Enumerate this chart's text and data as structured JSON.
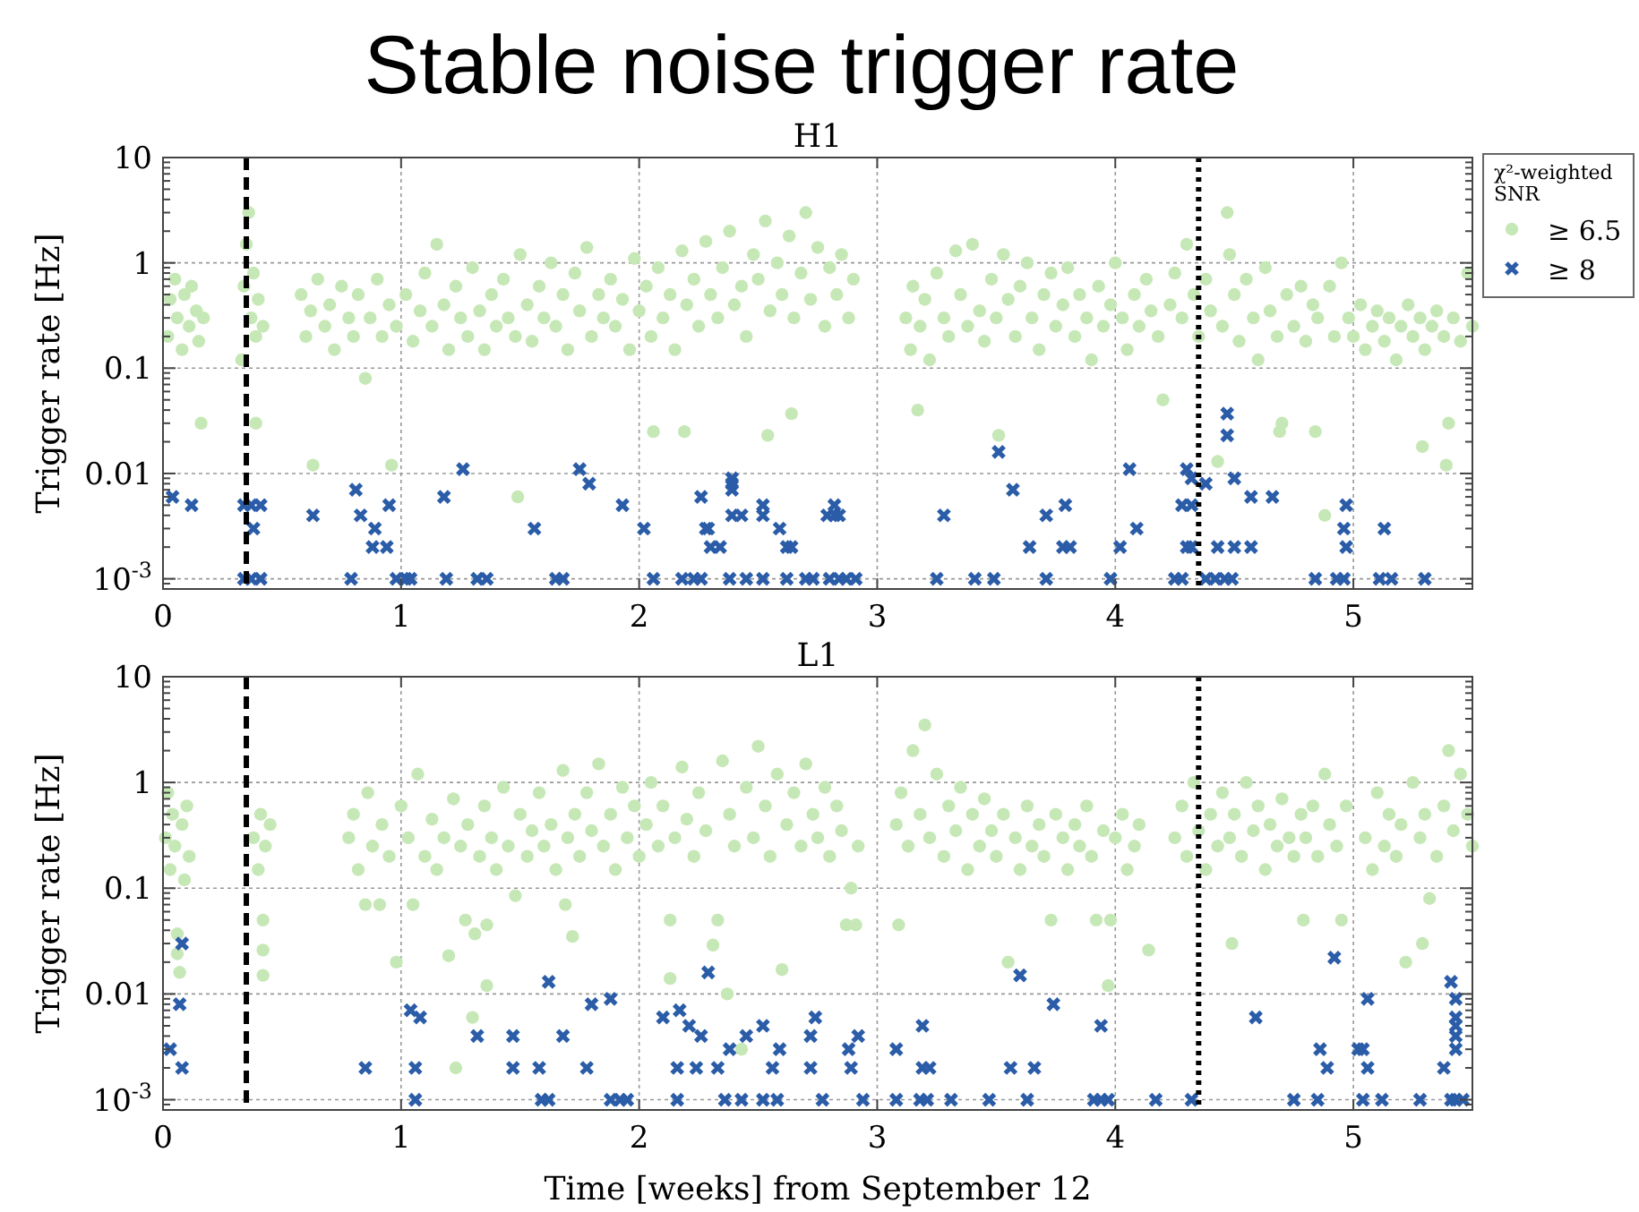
{
  "chart_data": [
    {
      "type": "scatter",
      "title": "Stable noise trigger rate",
      "subtitle": "H1",
      "ylabel": "Trigger rate [Hz]",
      "legend_title": "χ²-weighted SNR",
      "legend": "right",
      "grid": true,
      "log": "y",
      "xlim": [
        0,
        5.5
      ],
      "xticks": [
        0,
        1,
        2,
        3,
        4,
        5
      ],
      "ylim": [
        0.0008,
        10
      ],
      "yticks": [
        {
          "value": 0.001,
          "label": "10$^{-3}$"
        },
        0.01,
        0.1,
        1,
        10
      ],
      "ref_lines": [
        {
          "axis": "x",
          "value": 0.35,
          "color": "#000000",
          "line_style": "dashed"
        },
        {
          "axis": "x",
          "value": 4.35,
          "color": "#000000",
          "line_style": "dotted"
        }
      ],
      "series": [
        {
          "name": "≥ 6.5",
          "color": "#c6e8b6",
          "marker": "circle",
          "x": [
            0.02,
            0.03,
            0.05,
            0.06,
            0.08,
            0.09,
            0.11,
            0.12,
            0.14,
            0.15,
            0.16,
            0.17,
            0.33,
            0.34,
            0.35,
            0.36,
            0.37,
            0.38,
            0.39,
            0.39,
            0.4,
            0.42,
            0.58,
            0.6,
            0.62,
            0.63,
            0.65,
            0.68,
            0.7,
            0.72,
            0.75,
            0.78,
            0.8,
            0.82,
            0.85,
            0.87,
            0.9,
            0.92,
            0.95,
            0.96,
            0.98,
            1.02,
            1.05,
            1.08,
            1.1,
            1.13,
            1.15,
            1.18,
            1.2,
            1.23,
            1.25,
            1.28,
            1.3,
            1.33,
            1.35,
            1.38,
            1.4,
            1.43,
            1.45,
            1.48,
            1.49,
            1.5,
            1.53,
            1.55,
            1.58,
            1.6,
            1.63,
            1.65,
            1.68,
            1.7,
            1.73,
            1.75,
            1.78,
            1.8,
            1.83,
            1.85,
            1.88,
            1.9,
            1.93,
            1.96,
            1.98,
            2.0,
            2.03,
            2.05,
            2.06,
            2.08,
            2.1,
            2.13,
            2.15,
            2.18,
            2.19,
            2.2,
            2.23,
            2.25,
            2.28,
            2.3,
            2.33,
            2.35,
            2.38,
            2.4,
            2.43,
            2.45,
            2.48,
            2.5,
            2.53,
            2.54,
            2.55,
            2.58,
            2.6,
            2.63,
            2.64,
            2.65,
            2.68,
            2.7,
            2.72,
            2.75,
            2.78,
            2.8,
            2.83,
            2.85,
            2.88,
            2.9,
            3.12,
            3.14,
            3.15,
            3.17,
            3.18,
            3.2,
            3.22,
            3.25,
            3.28,
            3.3,
            3.33,
            3.35,
            3.38,
            3.4,
            3.43,
            3.45,
            3.48,
            3.5,
            3.51,
            3.53,
            3.55,
            3.58,
            3.6,
            3.63,
            3.65,
            3.68,
            3.7,
            3.73,
            3.75,
            3.78,
            3.8,
            3.83,
            3.85,
            3.88,
            3.9,
            3.93,
            3.95,
            3.98,
            4.0,
            4.03,
            4.05,
            4.08,
            4.1,
            4.13,
            4.15,
            4.18,
            4.2,
            4.23,
            4.25,
            4.28,
            4.3,
            4.33,
            4.35,
            4.38,
            4.4,
            4.43,
            4.45,
            4.47,
            4.48,
            4.5,
            4.52,
            4.55,
            4.58,
            4.6,
            4.63,
            4.65,
            4.68,
            4.69,
            4.7,
            4.72,
            4.75,
            4.78,
            4.8,
            4.83,
            4.84,
            4.85,
            4.88,
            4.9,
            4.92,
            4.95,
            4.98,
            5.0,
            5.03,
            5.05,
            5.08,
            5.1,
            5.13,
            5.15,
            5.18,
            5.2,
            5.23,
            5.25,
            5.28,
            5.29,
            5.3,
            5.33,
            5.35,
            5.38,
            5.39,
            5.4,
            5.42,
            5.45,
            5.48,
            5.5
          ],
          "values": [
            0.2,
            0.45,
            0.7,
            0.3,
            0.15,
            0.5,
            0.25,
            0.6,
            0.35,
            0.18,
            0.03,
            0.3,
            0.12,
            0.6,
            1.5,
            3,
            0.3,
            0.8,
            0.2,
            0.03,
            0.45,
            0.25,
            0.5,
            0.2,
            0.35,
            0.012,
            0.7,
            0.25,
            0.4,
            0.15,
            0.6,
            0.3,
            0.2,
            0.5,
            0.08,
            0.3,
            0.7,
            0.2,
            0.4,
            0.012,
            0.25,
            0.5,
            0.18,
            0.35,
            0.8,
            0.25,
            1.5,
            0.4,
            0.15,
            0.6,
            0.3,
            0.2,
            0.9,
            0.35,
            0.15,
            0.5,
            0.25,
            0.7,
            0.3,
            0.2,
            0.006,
            1.2,
            0.4,
            0.18,
            0.6,
            0.3,
            1.0,
            0.25,
            0.5,
            0.15,
            0.8,
            0.35,
            1.4,
            0.2,
            0.5,
            0.3,
            0.7,
            0.25,
            0.45,
            0.15,
            1.1,
            0.35,
            0.6,
            0.2,
            0.025,
            0.9,
            0.3,
            0.5,
            0.15,
            1.3,
            0.025,
            0.4,
            0.7,
            0.25,
            1.6,
            0.5,
            0.3,
            0.9,
            2.0,
            0.4,
            0.6,
            0.2,
            1.2,
            0.7,
            2.5,
            0.023,
            0.35,
            1.0,
            0.5,
            1.8,
            0.037,
            0.3,
            0.8,
            3.0,
            0.45,
            1.4,
            0.25,
            0.9,
            0.5,
            1.2,
            0.3,
            0.7,
            0.3,
            0.15,
            0.6,
            0.04,
            0.25,
            0.45,
            0.12,
            0.8,
            0.3,
            0.2,
            1.3,
            0.5,
            0.25,
            1.5,
            0.35,
            0.18,
            0.7,
            0.3,
            0.023,
            1.2,
            0.45,
            0.2,
            0.6,
            1.0,
            0.3,
            0.15,
            0.5,
            0.8,
            0.25,
            0.4,
            0.9,
            0.2,
            0.5,
            0.3,
            0.12,
            0.6,
            0.25,
            0.4,
            1.0,
            0.3,
            0.15,
            0.5,
            0.25,
            0.7,
            0.35,
            0.2,
            0.05,
            0.4,
            0.8,
            0.3,
            1.5,
            0.5,
            0.2,
            0.7,
            0.35,
            0.013,
            0.25,
            3.0,
            1.2,
            0.5,
            0.18,
            0.7,
            0.3,
            0.12,
            0.9,
            0.35,
            0.2,
            0.025,
            0.03,
            0.5,
            0.25,
            0.6,
            0.18,
            0.4,
            0.025,
            0.3,
            0.004,
            0.6,
            0.2,
            1.0,
            0.3,
            0.2,
            0.4,
            0.15,
            0.25,
            0.35,
            0.18,
            0.3,
            0.12,
            0.25,
            0.4,
            0.2,
            0.3,
            0.018,
            0.15,
            0.25,
            0.35,
            0.2,
            0.012,
            0.03,
            0.3,
            0.18,
            0.8,
            0.25
          ]
        },
        {
          "name": "≥ 8",
          "color": "#2a5ca8",
          "marker": "cross",
          "x": [
            0.04,
            0.12,
            0.34,
            0.37,
            0.41,
            0.38,
            0.34,
            0.37,
            0.41,
            0.63,
            0.81,
            0.83,
            0.89,
            0.88,
            0.94,
            0.95,
            0.79,
            0.98,
            1.02,
            1.04,
            1.18,
            1.26,
            1.19,
            1.32,
            1.36,
            1.56,
            1.65,
            1.68,
            1.75,
            1.79,
            1.93,
            2.02,
            2.06,
            2.18,
            2.23,
            2.26,
            2.26,
            2.28,
            2.29,
            2.3,
            2.34,
            2.39,
            2.39,
            2.39,
            2.39,
            2.43,
            2.38,
            2.45,
            2.52,
            2.52,
            2.52,
            2.59,
            2.62,
            2.64,
            2.62,
            2.7,
            2.73,
            2.79,
            2.82,
            2.84,
            2.82,
            2.8,
            2.84,
            2.87,
            2.91,
            3.25,
            3.28,
            3.41,
            3.49,
            3.51,
            3.57,
            3.64,
            3.71,
            3.71,
            3.79,
            3.78,
            3.81,
            3.98,
            4.02,
            4.06,
            4.09,
            4.25,
            4.28,
            4.28,
            4.32,
            4.3,
            4.32,
            4.3,
            4.32,
            4.38,
            4.38,
            4.42,
            4.46,
            4.49,
            4.47,
            4.47,
            4.5,
            4.43,
            4.5,
            4.57,
            4.57,
            4.66,
            4.84,
            4.93,
            4.96,
            4.97,
            4.96,
            4.97,
            5.13,
            5.11,
            5.16,
            5.3
          ],
          "values": [
            0.006,
            0.005,
            0.005,
            0.005,
            0.005,
            0.003,
            0.001,
            0.001,
            0.001,
            0.004,
            0.007,
            0.004,
            0.003,
            0.002,
            0.002,
            0.005,
            0.001,
            0.001,
            0.001,
            0.001,
            0.006,
            0.011,
            0.001,
            0.001,
            0.001,
            0.003,
            0.001,
            0.001,
            0.011,
            0.008,
            0.005,
            0.003,
            0.001,
            0.001,
            0.001,
            0.001,
            0.006,
            0.003,
            0.003,
            0.002,
            0.002,
            0.009,
            0.008,
            0.007,
            0.004,
            0.004,
            0.001,
            0.001,
            0.001,
            0.005,
            0.004,
            0.003,
            0.002,
            0.002,
            0.001,
            0.001,
            0.001,
            0.004,
            0.004,
            0.004,
            0.005,
            0.001,
            0.001,
            0.001,
            0.001,
            0.001,
            0.004,
            0.001,
            0.001,
            0.016,
            0.007,
            0.002,
            0.004,
            0.001,
            0.005,
            0.002,
            0.002,
            0.001,
            0.002,
            0.011,
            0.003,
            0.001,
            0.001,
            0.005,
            0.005,
            0.011,
            0.009,
            0.002,
            0.002,
            0.008,
            0.001,
            0.001,
            0.001,
            0.001,
            0.023,
            0.037,
            0.009,
            0.002,
            0.002,
            0.002,
            0.006,
            0.006,
            0.001,
            0.001,
            0.001,
            0.005,
            0.003,
            0.002,
            0.003,
            0.001,
            0.001,
            0.001
          ]
        }
      ]
    },
    {
      "type": "scatter",
      "title": "L1",
      "xlabel": "Time [weeks] from September 12",
      "ylabel": "Trigger rate [Hz]",
      "grid": true,
      "log": "y",
      "xlim": [
        0,
        5.5
      ],
      "xticks": [
        0,
        1,
        2,
        3,
        4,
        5
      ],
      "ylim": [
        0.0008,
        10
      ],
      "yticks": [
        {
          "value": 0.001,
          "label": "10$^{-3}$"
        },
        0.01,
        0.1,
        1,
        10
      ],
      "ref_lines": [
        {
          "axis": "x",
          "value": 0.35,
          "color": "#000000",
          "line_style": "dashed"
        },
        {
          "axis": "x",
          "value": 4.35,
          "color": "#000000",
          "line_style": "dotted"
        }
      ],
      "series": [
        {
          "color": "#c6e8b6",
          "marker": "circle",
          "x": [
            0.01,
            0.02,
            0.03,
            0.04,
            0.05,
            0.06,
            0.06,
            0.07,
            0.08,
            0.09,
            0.1,
            0.11,
            0.38,
            0.4,
            0.41,
            0.42,
            0.42,
            0.42,
            0.43,
            0.45,
            0.78,
            0.8,
            0.82,
            0.85,
            0.86,
            0.88,
            0.91,
            0.92,
            0.95,
            0.98,
            1.0,
            1.03,
            1.05,
            1.07,
            1.1,
            1.13,
            1.15,
            1.18,
            1.2,
            1.22,
            1.23,
            1.25,
            1.27,
            1.28,
            1.3,
            1.31,
            1.33,
            1.35,
            1.36,
            1.36,
            1.38,
            1.4,
            1.43,
            1.45,
            1.48,
            1.5,
            1.53,
            1.55,
            1.58,
            1.6,
            1.63,
            1.65,
            1.68,
            1.69,
            1.7,
            1.72,
            1.73,
            1.75,
            1.78,
            1.8,
            1.83,
            1.85,
            1.88,
            1.9,
            1.93,
            1.95,
            1.98,
            2.0,
            2.03,
            2.05,
            2.08,
            2.1,
            2.13,
            2.13,
            2.15,
            2.18,
            2.2,
            2.23,
            2.25,
            2.28,
            2.31,
            2.33,
            2.35,
            2.37,
            2.38,
            2.4,
            2.43,
            2.45,
            2.48,
            2.5,
            2.53,
            2.55,
            2.58,
            2.6,
            2.62,
            2.65,
            2.68,
            2.7,
            2.73,
            2.75,
            2.78,
            2.8,
            2.83,
            2.85,
            2.87,
            2.89,
            2.91,
            2.92,
            3.08,
            3.09,
            3.1,
            3.13,
            3.15,
            3.18,
            3.2,
            3.22,
            3.25,
            3.28,
            3.3,
            3.33,
            3.35,
            3.38,
            3.4,
            3.43,
            3.45,
            3.48,
            3.5,
            3.53,
            3.55,
            3.58,
            3.6,
            3.63,
            3.65,
            3.68,
            3.7,
            3.73,
            3.75,
            3.78,
            3.8,
            3.83,
            3.85,
            3.88,
            3.9,
            3.92,
            3.95,
            3.97,
            3.98,
            4.0,
            4.03,
            4.05,
            4.08,
            4.1,
            4.14,
            4.25,
            4.28,
            4.3,
            4.33,
            4.35,
            4.38,
            4.4,
            4.43,
            4.45,
            4.48,
            4.49,
            4.5,
            4.53,
            4.55,
            4.58,
            4.6,
            4.63,
            4.65,
            4.68,
            4.7,
            4.73,
            4.75,
            4.78,
            4.79,
            4.8,
            4.83,
            4.85,
            4.88,
            4.9,
            4.93,
            4.95,
            4.97,
            5.05,
            5.08,
            5.1,
            5.13,
            5.15,
            5.18,
            5.2,
            5.22,
            5.25,
            5.28,
            5.29,
            5.3,
            5.32,
            5.35,
            5.38,
            5.4,
            5.42,
            5.45,
            5.48,
            5.5
          ],
          "values": [
            0.3,
            0.8,
            0.15,
            0.5,
            0.25,
            0.037,
            0.024,
            0.016,
            0.4,
            0.12,
            0.6,
            0.2,
            0.3,
            0.15,
            0.5,
            0.05,
            0.026,
            0.015,
            0.25,
            0.4,
            0.3,
            0.5,
            0.15,
            0.07,
            0.8,
            0.25,
            0.07,
            0.4,
            0.2,
            0.02,
            0.6,
            0.3,
            0.07,
            1.2,
            0.2,
            0.45,
            0.15,
            0.3,
            0.023,
            0.7,
            0.002,
            0.25,
            0.05,
            0.4,
            0.006,
            0.037,
            0.2,
            0.6,
            0.045,
            0.012,
            0.3,
            0.15,
            0.9,
            0.25,
            0.085,
            0.5,
            0.2,
            0.35,
            0.8,
            0.25,
            0.4,
            0.15,
            1.3,
            0.07,
            0.3,
            0.035,
            0.5,
            0.2,
            0.8,
            0.35,
            1.5,
            0.25,
            0.5,
            0.15,
            0.9,
            0.3,
            0.6,
            0.2,
            0.4,
            1.0,
            0.25,
            0.6,
            0.05,
            0.014,
            0.3,
            1.4,
            0.45,
            0.2,
            0.8,
            0.35,
            0.029,
            0.05,
            1.6,
            0.01,
            0.5,
            0.25,
            0.003,
            0.9,
            0.3,
            2.2,
            0.6,
            0.2,
            1.2,
            0.017,
            0.4,
            0.8,
            0.25,
            1.5,
            0.5,
            0.3,
            0.9,
            0.2,
            0.6,
            0.35,
            0.045,
            0.1,
            0.045,
            0.25,
            0.4,
            0.045,
            0.8,
            0.25,
            2.0,
            0.5,
            3.5,
            0.3,
            1.2,
            0.2,
            0.6,
            0.35,
            0.9,
            0.15,
            0.5,
            0.25,
            0.7,
            0.35,
            0.2,
            0.5,
            0.02,
            0.3,
            0.15,
            0.6,
            0.25,
            0.4,
            0.2,
            0.05,
            0.5,
            0.3,
            0.15,
            0.4,
            0.25,
            0.6,
            0.2,
            0.05,
            0.35,
            0.012,
            0.05,
            0.3,
            0.5,
            0.15,
            0.25,
            0.4,
            0.026,
            0.3,
            0.6,
            0.2,
            1.0,
            0.35,
            0.15,
            0.5,
            0.25,
            0.8,
            0.3,
            0.03,
            0.5,
            0.2,
            1.0,
            0.35,
            0.6,
            0.15,
            0.4,
            0.25,
            0.7,
            0.3,
            0.2,
            0.5,
            0.05,
            0.3,
            0.6,
            0.2,
            1.2,
            0.4,
            0.25,
            0.05,
            0.6,
            0.3,
            0.15,
            0.8,
            0.25,
            0.5,
            0.2,
            0.4,
            0.02,
            1.0,
            0.3,
            0.03,
            0.5,
            0.08,
            0.2,
            0.6,
            2.0,
            0.35,
            1.2,
            0.5,
            0.25
          ]
        },
        {
          "color": "#2a5ca8",
          "marker": "cross",
          "x": [
            0.08,
            0.07,
            0.03,
            0.08,
            0.85,
            1.04,
            1.08,
            1.06,
            1.06,
            1.32,
            1.47,
            1.47,
            1.58,
            1.59,
            1.62,
            1.62,
            1.68,
            1.78,
            1.8,
            1.88,
            1.88,
            1.92,
            1.95,
            2.1,
            2.17,
            2.21,
            2.26,
            2.29,
            2.16,
            2.24,
            2.33,
            2.16,
            2.38,
            2.45,
            2.52,
            2.59,
            2.56,
            2.72,
            2.36,
            2.43,
            2.52,
            2.58,
            2.72,
            2.74,
            2.77,
            2.88,
            2.92,
            2.89,
            2.94,
            3.08,
            3.08,
            3.19,
            3.19,
            3.22,
            3.18,
            3.21,
            3.31,
            3.47,
            3.56,
            3.6,
            3.63,
            3.66,
            3.74,
            3.91,
            3.94,
            3.97,
            3.94,
            4.17,
            4.32,
            4.59,
            4.75,
            4.85,
            4.86,
            4.89,
            4.92,
            5.02,
            5.04,
            5.06,
            5.06,
            5.04,
            5.12,
            5.28,
            5.38,
            5.41,
            5.43,
            5.43,
            5.43,
            5.43,
            5.43,
            5.41,
            5.43,
            5.46
          ],
          "values": [
            0.03,
            0.008,
            0.003,
            0.002,
            0.002,
            0.007,
            0.006,
            0.002,
            0.001,
            0.004,
            0.004,
            0.002,
            0.002,
            0.001,
            0.001,
            0.013,
            0.004,
            0.002,
            0.008,
            0.009,
            0.001,
            0.001,
            0.001,
            0.006,
            0.007,
            0.005,
            0.004,
            0.016,
            0.002,
            0.002,
            0.002,
            0.001,
            0.003,
            0.004,
            0.005,
            0.003,
            0.002,
            0.002,
            0.001,
            0.001,
            0.001,
            0.001,
            0.004,
            0.006,
            0.001,
            0.003,
            0.004,
            0.002,
            0.001,
            0.003,
            0.001,
            0.005,
            0.002,
            0.002,
            0.001,
            0.001,
            0.001,
            0.001,
            0.002,
            0.015,
            0.001,
            0.002,
            0.008,
            0.001,
            0.001,
            0.001,
            0.005,
            0.001,
            0.001,
            0.006,
            0.001,
            0.001,
            0.003,
            0.002,
            0.022,
            0.003,
            0.003,
            0.002,
            0.009,
            0.001,
            0.001,
            0.001,
            0.002,
            0.013,
            0.009,
            0.006,
            0.005,
            0.004,
            0.003,
            0.001,
            0.001,
            0.001
          ]
        }
      ]
    }
  ]
}
